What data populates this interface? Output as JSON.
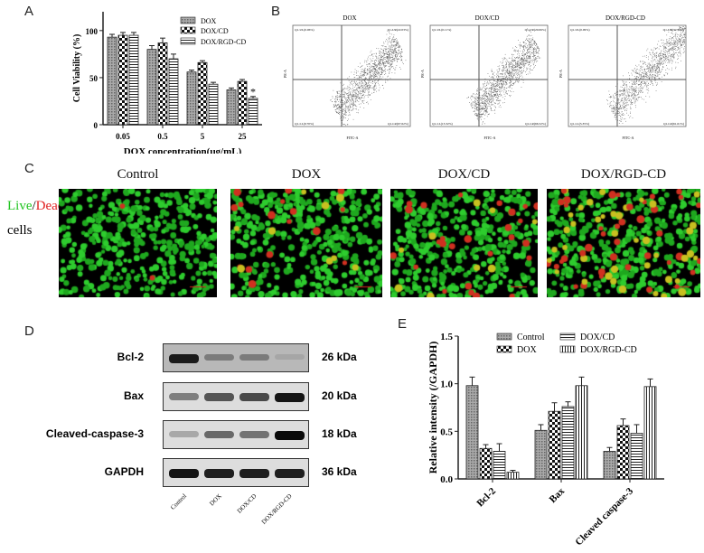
{
  "panels": {
    "a": "A",
    "b": "B",
    "c": "C",
    "d": "D",
    "e": "E"
  },
  "chart_data": [
    {
      "type": "bar",
      "panel": "A",
      "categories": [
        "0.05",
        "0.5",
        "5",
        "25"
      ],
      "xlabel": "DOX concentration(μg/mL)",
      "ylabel": "Cell Viability (%)",
      "ylim": [
        0,
        120
      ],
      "yticks": [
        "0",
        "50",
        "100"
      ],
      "legend": "top-right",
      "series": [
        {
          "name": "DOX",
          "values": [
            93,
            80,
            56,
            37
          ],
          "errors": [
            3,
            4,
            2,
            2
          ]
        },
        {
          "name": "DOX/CD",
          "values": [
            95,
            87,
            66,
            46
          ],
          "errors": [
            3,
            5,
            2,
            2
          ]
        },
        {
          "name": "DOX/RGD-CD",
          "values": [
            95,
            70,
            43,
            28
          ],
          "errors": [
            3,
            5,
            2,
            2
          ]
        }
      ],
      "annotations": [
        "*"
      ]
    },
    {
      "type": "bar",
      "panel": "E",
      "categories": [
        "Bcl-2",
        "Bax",
        "Cleaved caspase-3"
      ],
      "xlabel": "",
      "ylabel": "Relative intensity (/GAPDH)",
      "ylim": [
        0,
        1.5
      ],
      "yticks": [
        "0.0",
        "0.5",
        "1.0",
        "1.5"
      ],
      "legend": "top",
      "series": [
        {
          "name": "Control",
          "values": [
            0.98,
            0.51,
            0.29
          ],
          "errors": [
            0.09,
            0.06,
            0.04
          ]
        },
        {
          "name": "DOX",
          "values": [
            0.32,
            0.71,
            0.56
          ],
          "errors": [
            0.04,
            0.09,
            0.07
          ]
        },
        {
          "name": "DOX/CD",
          "values": [
            0.29,
            0.76,
            0.48
          ],
          "errors": [
            0.08,
            0.05,
            0.09
          ]
        },
        {
          "name": "DOX/RGD-CD",
          "values": [
            0.07,
            0.98,
            0.97
          ],
          "errors": [
            0.02,
            0.09,
            0.08
          ]
        }
      ]
    }
  ],
  "flow": {
    "xaxis": "FITC-A",
    "yaxis": "PE-A",
    "plots": [
      {
        "title": "DOX",
        "ul": "Q1-UL(0.06%)",
        "ur": "Q1-UR(22.03%)",
        "ll": "Q1-LL(9.70%)",
        "lr": "Q1-LR(67.62%)"
      },
      {
        "title": "DOX/CD",
        "ul": "Q1-UL(0.11%)",
        "ur": "Q1-UR(20.06%)",
        "ll": "Q1-LL(13.32%)",
        "lr": "Q1-LR(66.52%)"
      },
      {
        "title": "DOX/RGD-CD",
        "ul": "Q1-UL(0.09%)",
        "ur": "Q1-UR(32.19%)",
        "ll": "Q1-LL(5.35%)",
        "lr": "Q1-LR(61.61%)"
      }
    ]
  },
  "microscopy": {
    "live": "Live",
    "slash": "/",
    "dead": "Dead",
    "cells": "cells",
    "titles": [
      "Control",
      "DOX",
      "DOX/CD",
      "DOX/RGD-CD"
    ],
    "live_color": "#22c422",
    "dead_color": "#e02020"
  },
  "western": {
    "rows": [
      {
        "label": "Bcl-2",
        "kda": "26 kDa"
      },
      {
        "label": "Bax",
        "kda": "20 kDa"
      },
      {
        "label": "Cleaved-caspase-3",
        "kda": "18 kDa"
      },
      {
        "label": "GAPDH",
        "kda": "36 kDa"
      }
    ],
    "lanes": [
      "Control",
      "DOX",
      "DOX/CD",
      "DOX/RGD-CD"
    ]
  }
}
